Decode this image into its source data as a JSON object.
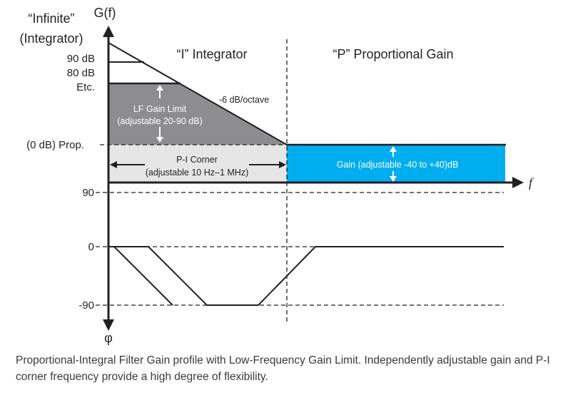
{
  "labels": {
    "y_axis_gain": "G(f)",
    "y_axis_phase": "φ",
    "x_axis": "f",
    "infinite": "“Infinite”",
    "integrator_paren": "(Integrator)",
    "db90": "90 dB",
    "db80": "80 dB",
    "etc": "Etc.",
    "prop": "(0 dB) Prop.",
    "region_i": "“I” Integrator",
    "region_p": "“P” Proportional Gain",
    "slope": "-6 dB/octave",
    "lf_gain_limit": "LF Gain Limit",
    "lf_gain_range": "(adjustable 20-90 dB)",
    "pi_corner": "P-I Corner",
    "pi_corner_range": "(adjustable 10 Hz–1 MHz)",
    "gain_range": "Gain (adjustable -40 to +40)dB",
    "phase_90": "90",
    "phase_0": "0",
    "phase_neg90": "-90"
  },
  "colors": {
    "lf_region": "#8d8d8f",
    "corner_region": "#e6e6e7",
    "gain_region": "#00aeef",
    "line": "#231f20"
  },
  "caption": "Proportional-Integral Filter Gain profile with Low-Frequency Gain Limit.  Independently adjustable gain and P-I corner frequency provide a high degree of flexibility."
}
